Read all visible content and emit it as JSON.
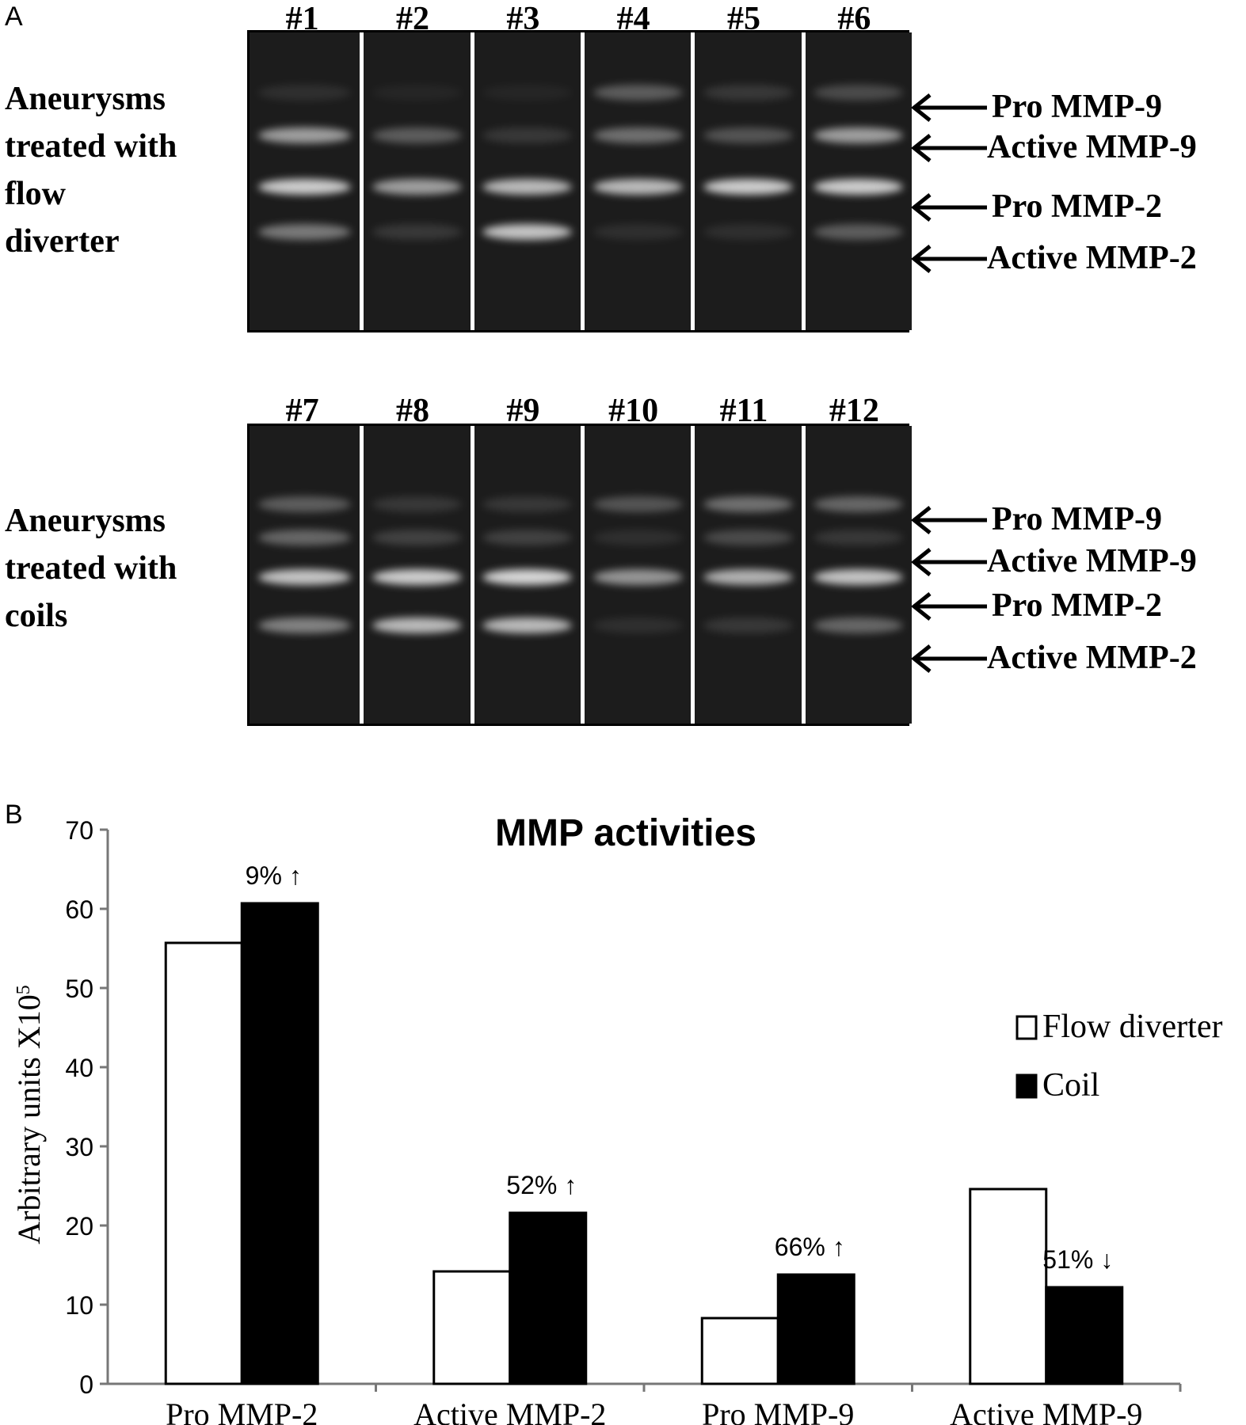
{
  "panel_a": {
    "letter": "A",
    "colors": {
      "gel_bg": "#1c1c1c",
      "separator": "#ffffff",
      "band": "#d6d6d6"
    },
    "gels": [
      {
        "group_label": [
          "Aneurysms",
          "treated with",
          "flow",
          "diverter"
        ],
        "lanes": [
          {
            "label": "#1",
            "bands": {
              "pro_mmp9": 0.1,
              "active_mmp9": 0.7,
              "pro_mmp2": 0.95,
              "active_mmp2": 0.5
            }
          },
          {
            "label": "#2",
            "bands": {
              "pro_mmp9": 0.05,
              "active_mmp9": 0.35,
              "pro_mmp2": 0.7,
              "active_mmp2": 0.15
            }
          },
          {
            "label": "#3",
            "bands": {
              "pro_mmp9": 0.05,
              "active_mmp9": 0.15,
              "pro_mmp2": 0.85,
              "active_mmp2": 0.9
            }
          },
          {
            "label": "#4",
            "bands": {
              "pro_mmp9": 0.35,
              "active_mmp9": 0.45,
              "pro_mmp2": 0.85,
              "active_mmp2": 0.1
            }
          },
          {
            "label": "#5",
            "bands": {
              "pro_mmp9": 0.15,
              "active_mmp9": 0.3,
              "pro_mmp2": 0.95,
              "active_mmp2": 0.1
            }
          },
          {
            "label": "#6",
            "bands": {
              "pro_mmp9": 0.25,
              "active_mmp9": 0.7,
              "pro_mmp2": 0.95,
              "active_mmp2": 0.35
            }
          }
        ],
        "band_labels": [
          "Pro MMP-9",
          "Active MMP-9",
          "Pro MMP-2",
          "Active MMP-2"
        ]
      },
      {
        "group_label": [
          "Aneurysms",
          "treated with",
          "coils"
        ],
        "lanes": [
          {
            "label": "#7",
            "bands": {
              "pro_mmp9": 0.35,
              "active_mmp9": 0.4,
              "pro_mmp2": 0.9,
              "active_mmp2": 0.55
            }
          },
          {
            "label": "#8",
            "bands": {
              "pro_mmp9": 0.15,
              "active_mmp9": 0.2,
              "pro_mmp2": 0.95,
              "active_mmp2": 0.85
            }
          },
          {
            "label": "#9",
            "bands": {
              "pro_mmp9": 0.15,
              "active_mmp9": 0.2,
              "pro_mmp2": 1.0,
              "active_mmp2": 0.85
            }
          },
          {
            "label": "#10",
            "bands": {
              "pro_mmp9": 0.3,
              "active_mmp9": 0.1,
              "pro_mmp2": 0.65,
              "active_mmp2": 0.1
            }
          },
          {
            "label": "#11",
            "bands": {
              "pro_mmp9": 0.45,
              "active_mmp9": 0.25,
              "pro_mmp2": 0.8,
              "active_mmp2": 0.15
            }
          },
          {
            "label": "#12",
            "bands": {
              "pro_mmp9": 0.4,
              "active_mmp9": 0.15,
              "pro_mmp2": 0.9,
              "active_mmp2": 0.4
            }
          }
        ],
        "band_labels": [
          "Pro MMP-9",
          "Active MMP-9",
          "Pro MMP-2",
          "Active MMP-2"
        ]
      }
    ]
  },
  "panel_b": {
    "letter": "B",
    "chart_data": {
      "type": "bar",
      "title": "MMP activities",
      "xlabel": "",
      "ylabel": "Arbitrary units  X10",
      "ylabel_superscript": "5",
      "ylim": [
        0,
        70
      ],
      "yticks": [
        0,
        10,
        20,
        30,
        40,
        50,
        60,
        70
      ],
      "categories": [
        "Pro MMP-2",
        "Active MMP-2",
        "Pro MMP-9",
        "Active MMP-9"
      ],
      "series": [
        {
          "name": "Flow diverter",
          "values": [
            55.7,
            14.2,
            8.3,
            24.6
          ],
          "color": "#ffffff"
        },
        {
          "name": "Coil",
          "values": [
            60.7,
            21.6,
            13.8,
            12.2
          ],
          "color": "#000000"
        }
      ],
      "annotations": [
        "9% ↑",
        "52% ↑",
        "66% ↑",
        "51% ↓"
      ],
      "legend_position": "right",
      "grid": false
    }
  }
}
